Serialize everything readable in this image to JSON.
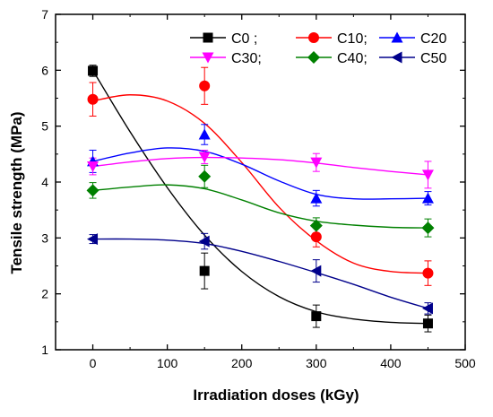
{
  "chart_data": {
    "type": "scatter",
    "xlabel": "Irradiation doses (kGy)",
    "ylabel": "Tensile strength (MPa)",
    "xlim": [
      -50,
      500
    ],
    "ylim": [
      1,
      7
    ],
    "xticks": [
      0,
      100,
      200,
      300,
      400,
      500
    ],
    "yticks": [
      1,
      2,
      3,
      4,
      5,
      6,
      7
    ],
    "grid": false,
    "legend_position": "top-right",
    "series": [
      {
        "name": "C0",
        "legend_label": "C0 ;",
        "color": "#000000",
        "marker": "square",
        "x": [
          0,
          150,
          300,
          450
        ],
        "y": [
          5.99,
          2.41,
          1.6,
          1.47
        ],
        "err": [
          0.1,
          0.32,
          0.2,
          0.15
        ],
        "fit": [
          [
            0,
            6.0
          ],
          [
            50,
            4.9
          ],
          [
            100,
            3.9
          ],
          [
            150,
            3.05
          ],
          [
            200,
            2.4
          ],
          [
            250,
            1.95
          ],
          [
            300,
            1.68
          ],
          [
            350,
            1.55
          ],
          [
            400,
            1.49
          ],
          [
            450,
            1.47
          ]
        ]
      },
      {
        "name": "C10",
        "legend_label": "C10;",
        "color": "#ff0000",
        "marker": "circle",
        "x": [
          0,
          150,
          300,
          450
        ],
        "y": [
          5.48,
          5.72,
          3.02,
          2.37
        ],
        "err": [
          0.3,
          0.33,
          0.18,
          0.22
        ],
        "fit": [
          [
            0,
            5.45
          ],
          [
            50,
            5.56
          ],
          [
            100,
            5.45
          ],
          [
            150,
            5.05
          ],
          [
            200,
            4.35
          ],
          [
            250,
            3.55
          ],
          [
            300,
            2.95
          ],
          [
            350,
            2.55
          ],
          [
            400,
            2.4
          ],
          [
            450,
            2.37
          ]
        ]
      },
      {
        "name": "C20",
        "legend_label": "C20",
        "color": "#0000ff",
        "marker": "triangle-up",
        "x": [
          0,
          150,
          300,
          450
        ],
        "y": [
          4.37,
          4.85,
          3.71,
          3.71
        ],
        "err": [
          0.2,
          0.18,
          0.14,
          0.12
        ],
        "fit": [
          [
            0,
            4.37
          ],
          [
            50,
            4.52
          ],
          [
            100,
            4.61
          ],
          [
            150,
            4.55
          ],
          [
            200,
            4.32
          ],
          [
            250,
            4.02
          ],
          [
            300,
            3.78
          ],
          [
            350,
            3.7
          ],
          [
            400,
            3.7
          ],
          [
            450,
            3.71
          ]
        ]
      },
      {
        "name": "C30",
        "legend_label": "C30;",
        "color": "#ff00ff",
        "marker": "triangle-down",
        "x": [
          0,
          150,
          300,
          450
        ],
        "y": [
          4.28,
          4.45,
          4.35,
          4.13
        ],
        "err": [
          0.15,
          0.12,
          0.16,
          0.24
        ],
        "fit": [
          [
            0,
            4.28
          ],
          [
            50,
            4.36
          ],
          [
            100,
            4.42
          ],
          [
            150,
            4.44
          ],
          [
            200,
            4.43
          ],
          [
            250,
            4.4
          ],
          [
            300,
            4.34
          ],
          [
            350,
            4.26
          ],
          [
            400,
            4.19
          ],
          [
            450,
            4.13
          ]
        ]
      },
      {
        "name": "C40",
        "legend_label": "C40;",
        "color": "#008000",
        "marker": "diamond",
        "x": [
          0,
          150,
          300,
          450
        ],
        "y": [
          3.85,
          4.1,
          3.22,
          3.18
        ],
        "err": [
          0.14,
          0.2,
          0.14,
          0.16
        ],
        "fit": [
          [
            0,
            3.85
          ],
          [
            50,
            3.91
          ],
          [
            100,
            3.95
          ],
          [
            150,
            3.88
          ],
          [
            200,
            3.68
          ],
          [
            250,
            3.45
          ],
          [
            300,
            3.3
          ],
          [
            350,
            3.23
          ],
          [
            400,
            3.19
          ],
          [
            450,
            3.18
          ]
        ]
      },
      {
        "name": "C50",
        "legend_label": "C50",
        "color": "#00008b",
        "marker": "triangle-left",
        "x": [
          0,
          150,
          300,
          450
        ],
        "y": [
          2.98,
          2.94,
          2.41,
          1.74
        ],
        "err": [
          0.08,
          0.14,
          0.2,
          0.1
        ],
        "fit": [
          [
            0,
            2.98
          ],
          [
            50,
            2.98
          ],
          [
            100,
            2.96
          ],
          [
            150,
            2.9
          ],
          [
            200,
            2.76
          ],
          [
            250,
            2.58
          ],
          [
            300,
            2.38
          ],
          [
            350,
            2.17
          ],
          [
            400,
            1.94
          ],
          [
            450,
            1.74
          ]
        ]
      }
    ]
  }
}
